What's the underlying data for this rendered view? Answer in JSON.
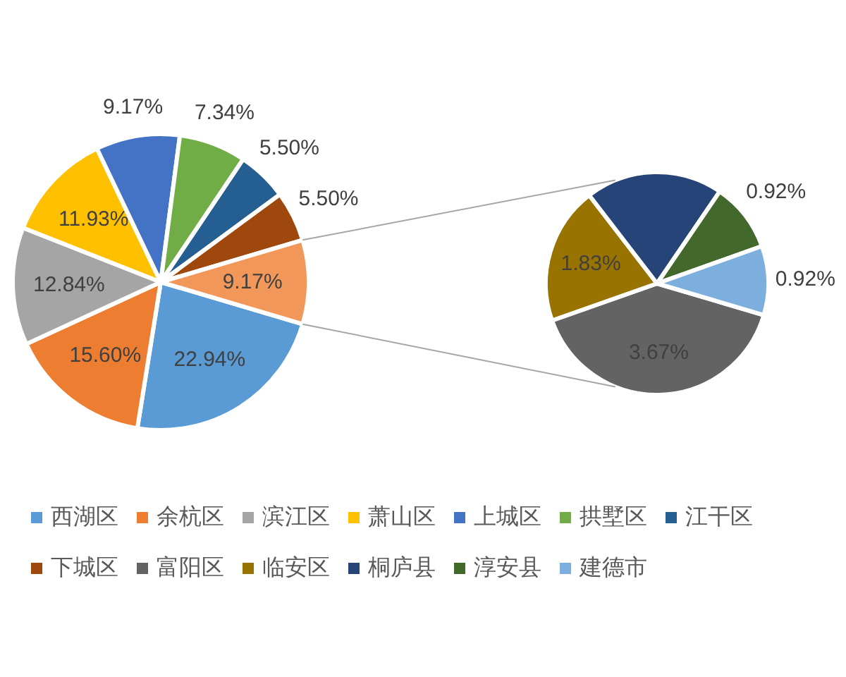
{
  "chart_data": [
    {
      "type": "pie",
      "categories": [
        "西湖区",
        "余杭区",
        "滨江区",
        "萧山区",
        "上城区",
        "拱墅区",
        "江干区",
        "下城区",
        null
      ],
      "values": [
        22.94,
        15.6,
        12.84,
        11.93,
        9.17,
        7.34,
        5.5,
        5.5,
        9.17
      ],
      "colors": [
        "#5b9bd5",
        "#ed7d31",
        "#a5a5a5",
        "#ffc000",
        "#4472c4",
        "#70ad47",
        "#255e91",
        "#9e480e",
        "#f1975a"
      ],
      "value_labels": [
        "22.94%",
        "15.60%",
        "12.84%",
        "11.93%",
        "9.17%",
        "7.34%",
        "5.50%",
        "5.50%",
        "9.17%"
      ],
      "legend": "bottom"
    },
    {
      "type": "pie",
      "categories": [
        "富阳区",
        "临安区",
        "桐庐县",
        "淳安县",
        "建德市"
      ],
      "values": [
        3.67,
        1.83,
        1.83,
        0.92,
        0.92
      ],
      "colors": [
        "#636363",
        "#997300",
        "#264478",
        "#43682b",
        "#7cafdd"
      ],
      "value_labels": [
        "3.67%",
        "1.83%",
        null,
        "0.92%",
        "0.92%"
      ],
      "legend": "bottom"
    }
  ]
}
